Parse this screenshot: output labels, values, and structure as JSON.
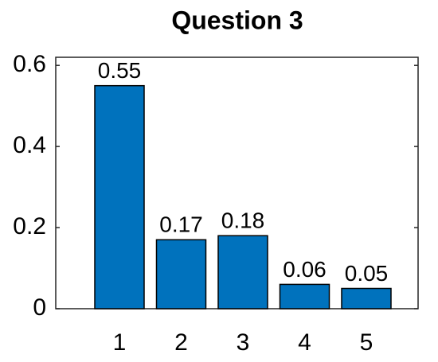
{
  "chart_data": {
    "type": "bar",
    "title": "Question 3",
    "categories": [
      "1",
      "2",
      "3",
      "4",
      "5"
    ],
    "values": [
      0.55,
      0.17,
      0.18,
      0.06,
      0.05
    ],
    "color": "#0072bd",
    "ylim": [
      0,
      0.62
    ],
    "yticks": [
      0,
      0.2,
      0.4,
      0.6
    ]
  }
}
